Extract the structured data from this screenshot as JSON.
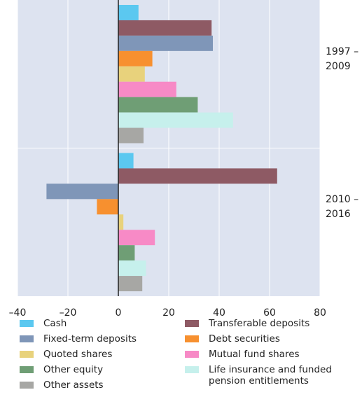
{
  "chart_data": {
    "type": "barh",
    "categories": [
      "1997 – 2009",
      "2010 – 2016"
    ],
    "series": [
      {
        "name": "Cash",
        "color": "#5bc8f0",
        "values": [
          8,
          6
        ]
      },
      {
        "name": "Transferable deposits",
        "color": "#8e5a64",
        "values": [
          37,
          63
        ]
      },
      {
        "name": "Fixed-term deposits",
        "color": "#7f96b8",
        "values": [
          37.5,
          -28.5
        ]
      },
      {
        "name": "Debt securities",
        "color": "#f7902f",
        "values": [
          13.5,
          -8.5
        ]
      },
      {
        "name": "Quoted shares",
        "color": "#e8d27c",
        "values": [
          10.5,
          2
        ]
      },
      {
        "name": "Mutual fund shares",
        "color": "#f78ac6",
        "values": [
          23,
          14.5
        ]
      },
      {
        "name": "Other equity",
        "color": "#6f9e75",
        "values": [
          31.5,
          6.5
        ]
      },
      {
        "name": "Life insurance and funded pension entitlements",
        "color": "#c6f0ec",
        "values": [
          45.5,
          11
        ]
      },
      {
        "name": "Other assets",
        "color": "#a7a7a4",
        "values": [
          10,
          9.5
        ]
      }
    ],
    "xlim": [
      -40,
      80
    ],
    "xticks": [
      {
        "value": -40,
        "label": "–40"
      },
      {
        "value": -20,
        "label": "–20"
      },
      0,
      20,
      40,
      60,
      80
    ],
    "grid": true
  }
}
